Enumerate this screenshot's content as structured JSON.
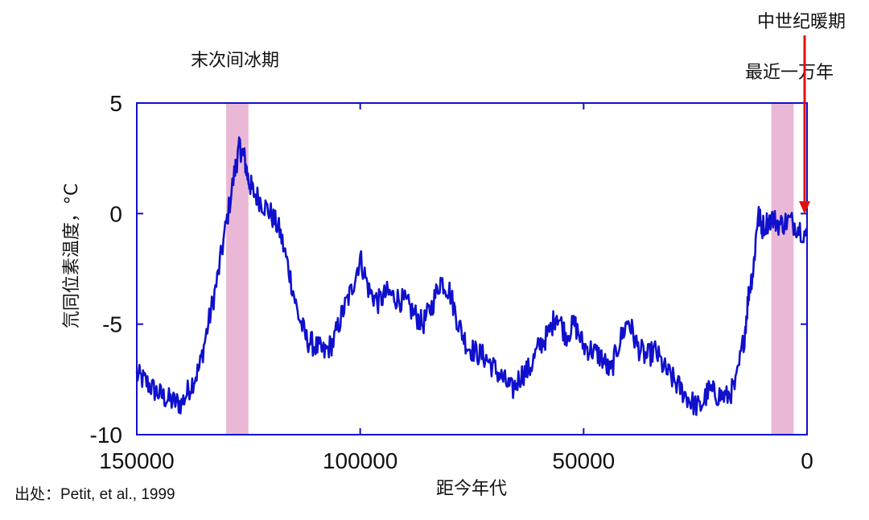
{
  "chart_data": {
    "type": "line",
    "xlabel": "距今年代",
    "ylabel": "氘同位素温度，°C",
    "xlim": [
      150000,
      0
    ],
    "ylim": [
      -10,
      5
    ],
    "x_ticks": [
      "150000",
      "100000",
      "50000",
      "0"
    ],
    "y_ticks": [
      "5",
      "0",
      "-5",
      "-10"
    ],
    "grid": false,
    "series_color": "#1010cc",
    "shade_color": "#eab8d6",
    "shaded_periods": [
      {
        "label": "末次间冰期",
        "x_range": [
          130000,
          125000
        ]
      },
      {
        "label": "最近一万年",
        "x_range": [
          8000,
          3000
        ]
      }
    ],
    "annotations": [
      {
        "label": "中世纪暖期",
        "x": 0,
        "y": 0,
        "color": "#e01010"
      }
    ],
    "source_note": "出处：Petit, et al., 1999",
    "series": [
      {
        "points": [
          [
            150000,
            -7.3
          ],
          [
            148000,
            -7.6
          ],
          [
            146000,
            -8.0
          ],
          [
            144000,
            -8.3
          ],
          [
            142000,
            -8.5
          ],
          [
            140000,
            -8.6
          ],
          [
            138000,
            -7.8
          ],
          [
            136000,
            -7.0
          ],
          [
            134000,
            -5.0
          ],
          [
            132000,
            -3.0
          ],
          [
            130000,
            -0.5
          ],
          [
            128000,
            2.0
          ],
          [
            127000,
            3.0
          ],
          [
            126000,
            2.6
          ],
          [
            125000,
            1.5
          ],
          [
            124000,
            1.0
          ],
          [
            122000,
            0.5
          ],
          [
            120000,
            0.0
          ],
          [
            118000,
            -0.8
          ],
          [
            116000,
            -2.5
          ],
          [
            114000,
            -4.5
          ],
          [
            112000,
            -5.7
          ],
          [
            110000,
            -6.0
          ],
          [
            108000,
            -6.3
          ],
          [
            106000,
            -5.8
          ],
          [
            104000,
            -4.5
          ],
          [
            102000,
            -3.5
          ],
          [
            100000,
            -2.0
          ],
          [
            98000,
            -3.5
          ],
          [
            96000,
            -4.0
          ],
          [
            94000,
            -3.6
          ],
          [
            92000,
            -3.8
          ],
          [
            90000,
            -4.0
          ],
          [
            88000,
            -4.5
          ],
          [
            86000,
            -5.0
          ],
          [
            84000,
            -4.2
          ],
          [
            82000,
            -3.0
          ],
          [
            80000,
            -3.5
          ],
          [
            78000,
            -5.0
          ],
          [
            76000,
            -6.0
          ],
          [
            74000,
            -6.3
          ],
          [
            72000,
            -6.5
          ],
          [
            70000,
            -7.0
          ],
          [
            68000,
            -7.5
          ],
          [
            66000,
            -8.0
          ],
          [
            64000,
            -7.3
          ],
          [
            62000,
            -7.0
          ],
          [
            60000,
            -6.0
          ],
          [
            58000,
            -5.5
          ],
          [
            56000,
            -4.5
          ],
          [
            54000,
            -5.5
          ],
          [
            52000,
            -5.0
          ],
          [
            50000,
            -6.0
          ],
          [
            48000,
            -6.2
          ],
          [
            46000,
            -6.5
          ],
          [
            44000,
            -7.2
          ],
          [
            42000,
            -5.8
          ],
          [
            40000,
            -4.8
          ],
          [
            38000,
            -6.0
          ],
          [
            36000,
            -6.5
          ],
          [
            34000,
            -6.2
          ],
          [
            32000,
            -7.0
          ],
          [
            30000,
            -7.5
          ],
          [
            28000,
            -8.0
          ],
          [
            26000,
            -8.5
          ],
          [
            24000,
            -8.8
          ],
          [
            22000,
            -8.0
          ],
          [
            20000,
            -8.2
          ],
          [
            18000,
            -8.3
          ],
          [
            16000,
            -7.8
          ],
          [
            14000,
            -5.5
          ],
          [
            13000,
            -3.5
          ],
          [
            12000,
            -2.5
          ],
          [
            11000,
            0.0
          ],
          [
            10000,
            -0.6
          ],
          [
            8000,
            -0.2
          ],
          [
            6000,
            -0.5
          ],
          [
            4000,
            -0.3
          ],
          [
            2000,
            -0.6
          ],
          [
            0,
            -1.0
          ]
        ]
      }
    ]
  }
}
